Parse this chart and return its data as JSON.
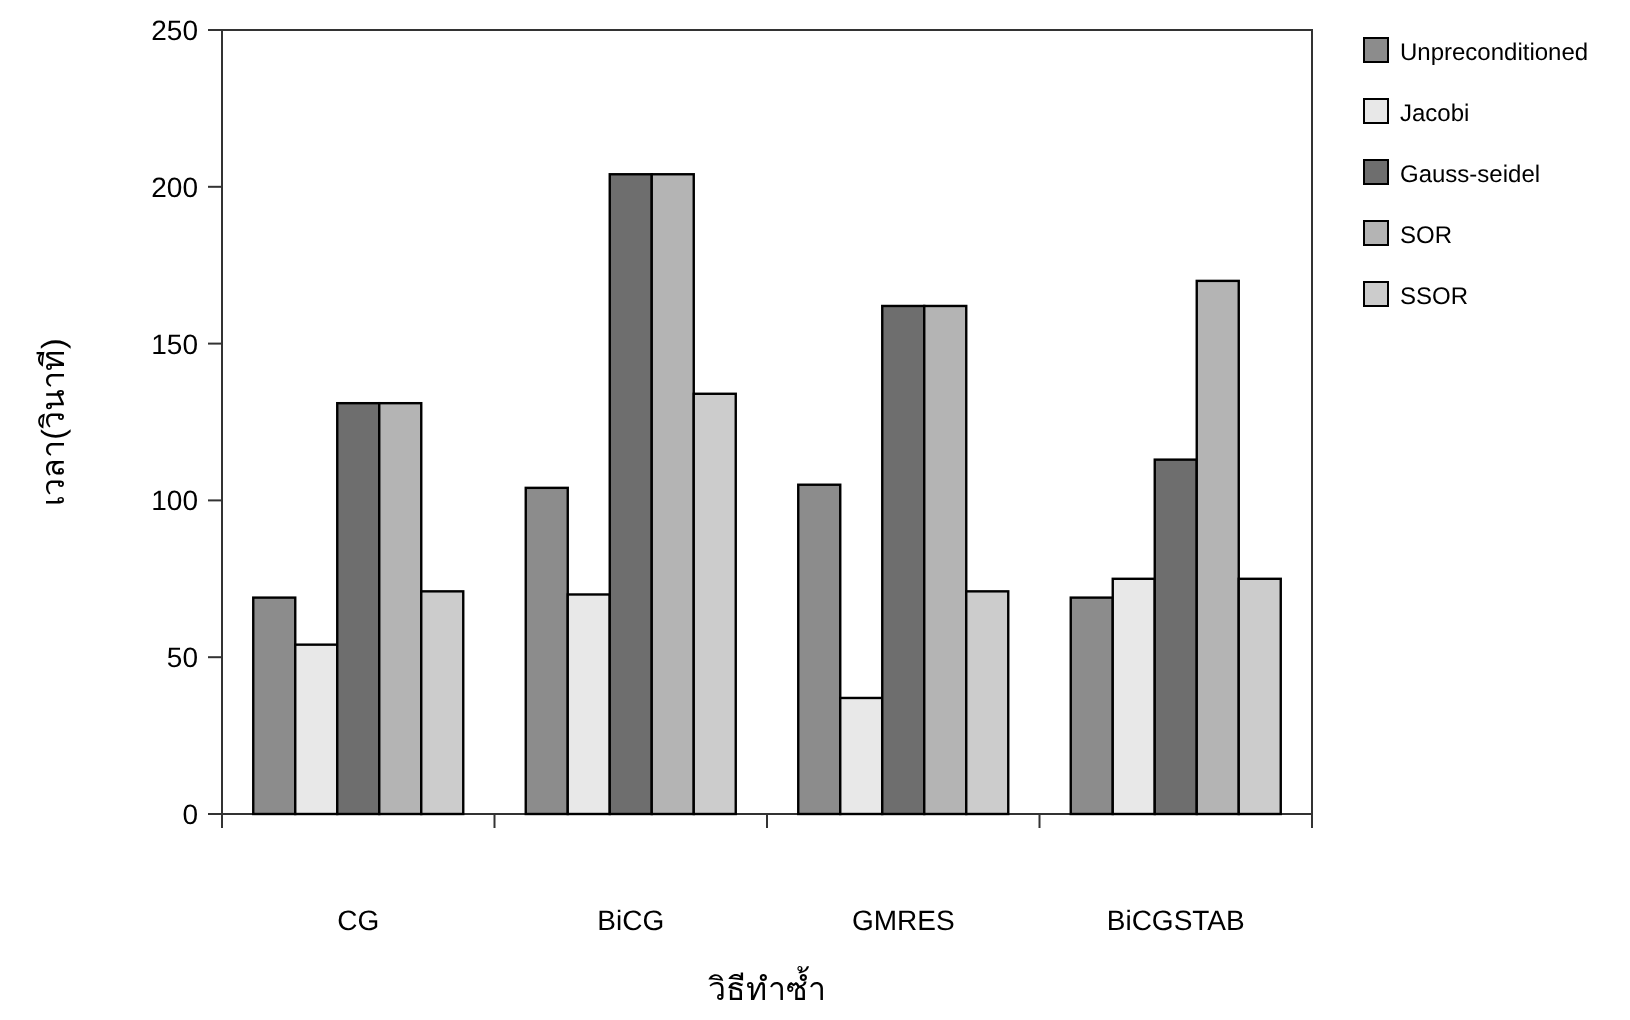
{
  "chart_data": {
    "type": "bar",
    "xlabel": "วิธีทำซ้ำ",
    "ylabel": "เวลา(วินาที)",
    "categories": [
      "CG",
      "BiCG",
      "GMRES",
      "BiCGSTAB"
    ],
    "series": [
      {
        "name": "Unpreconditioned",
        "color": "#8c8c8c",
        "values": [
          69,
          104,
          105,
          69
        ]
      },
      {
        "name": "Jacobi",
        "color": "#e8e8e8",
        "values": [
          54,
          70,
          37,
          75
        ]
      },
      {
        "name": "Gauss-seidel",
        "color": "#6e6e6e",
        "values": [
          131,
          204,
          162,
          113
        ]
      },
      {
        "name": "SOR",
        "color": "#b4b4b4",
        "values": [
          131,
          204,
          162,
          170
        ]
      },
      {
        "name": "SSOR",
        "color": "#cccccc",
        "values": [
          71,
          134,
          71,
          75
        ]
      }
    ],
    "ylim": [
      0,
      250
    ],
    "yticks": [
      0,
      50,
      100,
      150,
      200,
      250
    ],
    "legend": "top right",
    "grid": false
  }
}
